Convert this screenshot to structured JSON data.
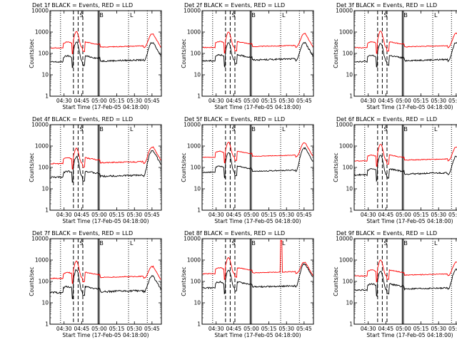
{
  "page": {
    "background": "#ffffff"
  },
  "chart_common": {
    "type": "line",
    "ylabel": "Counts/sec",
    "xlabel": "Start Time (17-Feb-05 04:18:00)",
    "yscale": "log",
    "ylim": [
      1,
      10000
    ],
    "yticks": [
      "1",
      "10",
      "100",
      "1000",
      "10000"
    ],
    "xlim_minutes_after_start": [
      0,
      95
    ],
    "xticks": [
      {
        "label": "04:30",
        "t": 12
      },
      {
        "label": "04:45",
        "t": 27
      },
      {
        "label": "05:00",
        "t": 42
      },
      {
        "label": "05:15",
        "t": 57
      },
      {
        "label": "05:30",
        "t": 72
      },
      {
        "label": "05:45",
        "t": 87
      }
    ],
    "markers": [
      {
        "label": "S",
        "style": "dashed",
        "lines_t": [
          20,
          24,
          28
        ]
      },
      {
        "label": "B",
        "style": "solid",
        "lines_t": [
          41,
          42
        ]
      },
      {
        "label": "L",
        "style": "dotted",
        "lines_t": [
          9,
          67,
          83
        ]
      }
    ],
    "colors": {
      "events": "#000000",
      "lld": "#ff0000",
      "axes": "#000000"
    }
  },
  "chart_data": [
    {
      "title": "Det 1f BLACK = Events, RED = LLD",
      "series": [
        {
          "name": "Events",
          "color": "#000000",
          "base": 40,
          "peak": 350,
          "flare": 330,
          "noise": 0.08
        },
        {
          "name": "LLD",
          "color": "#ff0000",
          "base": 180,
          "peak": 1050,
          "flare": 820,
          "noise": 0.04
        }
      ]
    },
    {
      "title": "Det 2f BLACK = Events, RED = LLD",
      "series": [
        {
          "name": "Events",
          "color": "#000000",
          "base": 45,
          "peak": 330,
          "flare": 320,
          "noise": 0.08
        },
        {
          "name": "LLD",
          "color": "#ff0000",
          "base": 190,
          "peak": 1000,
          "flare": 850,
          "noise": 0.04
        }
      ]
    },
    {
      "title": "Det 3f BLACK = Events, RED = LLD",
      "series": [
        {
          "name": "Events",
          "color": "#000000",
          "base": 42,
          "peak": 300,
          "flare": 330,
          "noise": 0.08
        },
        {
          "name": "LLD",
          "color": "#ff0000",
          "base": 185,
          "peak": 1100,
          "flare": 880,
          "noise": 0.04
        }
      ]
    },
    {
      "title": "Det 4f BLACK = Events, RED = LLD",
      "series": [
        {
          "name": "Events",
          "color": "#000000",
          "base": 35,
          "peak": 320,
          "flare": 600,
          "noise": 0.09
        },
        {
          "name": "LLD",
          "color": "#ff0000",
          "base": 150,
          "peak": 800,
          "flare": 900,
          "noise": 0.06
        }
      ]
    },
    {
      "title": "Det 5f BLACK = Events, RED = LLD",
      "series": [
        {
          "name": "Events",
          "color": "#000000",
          "base": 60,
          "peak": 500,
          "flare": 800,
          "noise": 0.06
        },
        {
          "name": "LLD",
          "color": "#ff0000",
          "base": 300,
          "peak": 1500,
          "flare": 1400,
          "noise": 0.03
        }
      ]
    },
    {
      "title": "Det 6f BLACK = Events, RED = LLD",
      "series": [
        {
          "name": "Events",
          "color": "#000000",
          "base": 45,
          "peak": 380,
          "flare": 330,
          "noise": 0.08
        },
        {
          "name": "LLD",
          "color": "#ff0000",
          "base": 200,
          "peak": 1200,
          "flare": 900,
          "noise": 0.04
        }
      ]
    },
    {
      "title": "Det 7f BLACK = Events, RED = LLD",
      "series": [
        {
          "name": "Events",
          "color": "#000000",
          "base": 30,
          "peak": 350,
          "flare": 180,
          "noise": 0.1
        },
        {
          "name": "LLD",
          "color": "#ff0000",
          "base": 140,
          "peak": 900,
          "flare": 500,
          "noise": 0.05
        }
      ]
    },
    {
      "title": "Det 8f BLACK = Events, RED = LLD",
      "series": [
        {
          "name": "Events",
          "color": "#000000",
          "base": 50,
          "peak": 350,
          "flare": 650,
          "noise": 0.08
        },
        {
          "name": "LLD",
          "color": "#ff0000",
          "base": 230,
          "peak": 1300,
          "flare": 800,
          "noise": 0.04,
          "spike": 8000
        }
      ]
    },
    {
      "title": "Det 9f BLACK = Events, RED = LLD",
      "series": [
        {
          "name": "Events",
          "color": "#000000",
          "base": 40,
          "peak": 300,
          "flare": 380,
          "noise": 0.08
        },
        {
          "name": "LLD",
          "color": "#ff0000",
          "base": 180,
          "peak": 1000,
          "flare": 800,
          "noise": 0.04
        }
      ]
    }
  ]
}
